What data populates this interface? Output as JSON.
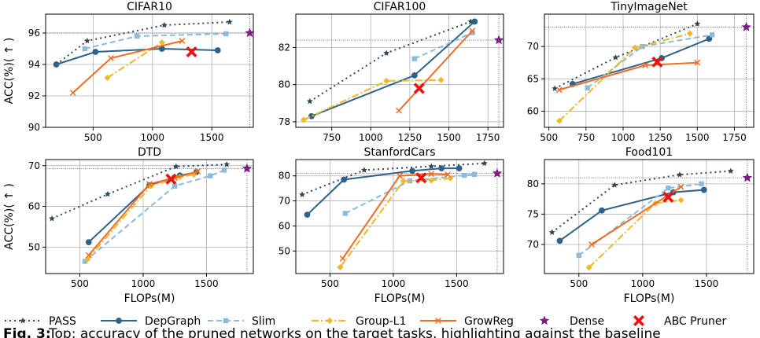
{
  "chart_data": [
    {
      "type": "line",
      "title": "CIFAR10",
      "ylabel": "ACC(%)( ↑ )",
      "xlabel": "",
      "xlim": [
        100,
        1850
      ],
      "ylim": [
        90,
        97.2
      ],
      "xticks": [
        500,
        1000,
        1500
      ],
      "yticks": [
        90,
        92,
        94,
        96
      ],
      "dense_acc": 96.0,
      "series": [
        {
          "name": "PASS",
          "points": [
            [
              190,
              94.0
            ],
            [
              450,
              95.5
            ],
            [
              1100,
              96.5
            ],
            [
              1650,
              96.7
            ]
          ]
        },
        {
          "name": "DepGraph",
          "points": [
            [
              190,
              94.0
            ],
            [
              520,
              94.8
            ],
            [
              1080,
              95.0
            ],
            [
              1550,
              94.9
            ]
          ]
        },
        {
          "name": "Slim",
          "points": [
            [
              430,
              95.0
            ],
            [
              870,
              95.8
            ],
            [
              1620,
              95.95
            ]
          ]
        },
        {
          "name": "Group-L1",
          "points": [
            [
              620,
              93.15
            ],
            [
              1080,
              95.4
            ]
          ]
        },
        {
          "name": "GrowReg",
          "points": [
            [
              330,
              92.2
            ],
            [
              650,
              94.4
            ],
            [
              1250,
              95.5
            ]
          ]
        }
      ],
      "dense": [
        1820,
        96.0
      ],
      "abc": [
        1330,
        94.8
      ]
    },
    {
      "type": "line",
      "title": "CIFAR100",
      "ylabel": "",
      "xlabel": "",
      "xlim": [
        520,
        1850
      ],
      "ylim": [
        77.7,
        83.8
      ],
      "xticks": [
        750,
        1000,
        1250,
        1500,
        1750
      ],
      "yticks": [
        78,
        80,
        82
      ],
      "dense_acc": 82.4,
      "series": [
        {
          "name": "PASS",
          "points": [
            [
              610,
              79.1
            ],
            [
              1100,
              81.7
            ],
            [
              1640,
              83.4
            ]
          ]
        },
        {
          "name": "DepGraph",
          "points": [
            [
              620,
              78.3
            ],
            [
              1280,
              80.5
            ],
            [
              1665,
              83.4
            ]
          ]
        },
        {
          "name": "Slim",
          "points": [
            [
              1280,
              81.4
            ],
            [
              1650,
              82.8
            ]
          ]
        },
        {
          "name": "Group-L1",
          "points": [
            [
              570,
              78.1
            ],
            [
              1100,
              80.2
            ],
            [
              1450,
              80.25
            ]
          ]
        },
        {
          "name": "GrowReg",
          "points": [
            [
              1180,
              78.6
            ],
            [
              1650,
              82.9
            ]
          ]
        }
      ],
      "dense": [
        1820,
        82.4
      ],
      "abc": [
        1310,
        79.8
      ]
    },
    {
      "type": "line",
      "title": "TinyImageNet",
      "ylabel": "",
      "xlabel": "",
      "xlim": [
        470,
        1880
      ],
      "ylim": [
        57.5,
        75
      ],
      "xticks": [
        500,
        750,
        1000,
        1250,
        1500,
        1750
      ],
      "yticks": [
        60,
        65,
        70
      ],
      "dense_acc": 73.0,
      "series": [
        {
          "name": "PASS",
          "points": [
            [
              540,
              63.5
            ],
            [
              950,
              68.3
            ],
            [
              1500,
              73.5
            ]
          ]
        },
        {
          "name": "DepGraph",
          "points": [
            [
              660,
              64.2
            ],
            [
              1260,
              68.2
            ],
            [
              1580,
              71.2
            ]
          ]
        },
        {
          "name": "Slim",
          "points": [
            [
              760,
              63.6
            ],
            [
              1130,
              70.0
            ],
            [
              1600,
              71.8
            ]
          ]
        },
        {
          "name": "Group-L1",
          "points": [
            [
              570,
              58.5
            ],
            [
              1080,
              69.8
            ],
            [
              1450,
              72.0
            ]
          ]
        },
        {
          "name": "GrowReg",
          "points": [
            [
              570,
              63.3
            ],
            [
              1150,
              67.1
            ],
            [
              1500,
              67.5
            ]
          ]
        }
      ],
      "dense": [
        1830,
        73.0
      ],
      "abc": [
        1230,
        67.6
      ]
    },
    {
      "type": "line",
      "title": "DTD",
      "ylabel": "ACC(%)( ↑ )",
      "xlabel": "FLOPs(M)",
      "xlim": [
        230,
        1870
      ],
      "ylim": [
        43.5,
        71.5
      ],
      "xticks": [
        500,
        1000,
        1500
      ],
      "yticks": [
        50,
        60,
        70
      ],
      "dense_acc": 69.3,
      "series": [
        {
          "name": "PASS",
          "points": [
            [
              280,
              57.0
            ],
            [
              720,
              63.0
            ],
            [
              1260,
              69.8
            ],
            [
              1660,
              70.3
            ]
          ]
        },
        {
          "name": "DepGraph",
          "points": [
            [
              570,
              51.2
            ],
            [
              1050,
              65.2
            ],
            [
              1290,
              67.6
            ],
            [
              1420,
              68.4
            ]
          ]
        },
        {
          "name": "Slim",
          "points": [
            [
              540,
              46.5
            ],
            [
              1250,
              65.0
            ],
            [
              1530,
              67.5
            ],
            [
              1640,
              68.9
            ]
          ]
        },
        {
          "name": "Group-L1",
          "points": [
            [
              560,
              47.0
            ],
            [
              1060,
              65.0
            ],
            [
              1290,
              67.2
            ],
            [
              1400,
              67.8
            ]
          ]
        },
        {
          "name": "GrowReg",
          "points": [
            [
              570,
              48.0
            ],
            [
              1050,
              65.5
            ],
            [
              1250,
              67.0
            ],
            [
              1430,
              68.6
            ]
          ]
        }
      ],
      "dense": [
        1820,
        69.3
      ],
      "abc": [
        1220,
        66.7
      ]
    },
    {
      "type": "line",
      "title": "StanfordCars",
      "ylabel": "",
      "xlabel": "FLOPs(M)",
      "xlim": [
        230,
        1870
      ],
      "ylim": [
        41,
        86.5
      ],
      "xticks": [
        500,
        1000,
        1500
      ],
      "yticks": [
        50,
        60,
        70,
        80
      ],
      "dense_acc": 81.0,
      "series": [
        {
          "name": "PASS",
          "points": [
            [
              280,
              72.5
            ],
            [
              770,
              82.3
            ],
            [
              1300,
              83.8
            ],
            [
              1720,
              85.0
            ]
          ]
        },
        {
          "name": "DepGraph",
          "points": [
            [
              320,
              64.5
            ],
            [
              610,
              78.5
            ],
            [
              1150,
              82.0
            ],
            [
              1380,
              83.0
            ],
            [
              1520,
              83.0
            ]
          ]
        },
        {
          "name": "Slim",
          "points": [
            [
              620,
              65.0
            ],
            [
              1130,
              78.0
            ],
            [
              1560,
              80.2
            ],
            [
              1640,
              80.6
            ]
          ]
        },
        {
          "name": "Group-L1",
          "points": [
            [
              580,
              43.5
            ],
            [
              1080,
              78.0
            ],
            [
              1300,
              78.2
            ],
            [
              1450,
              79.0
            ]
          ]
        },
        {
          "name": "GrowReg",
          "points": [
            [
              600,
              47.0
            ],
            [
              1050,
              80.0
            ],
            [
              1300,
              80.8
            ],
            [
              1430,
              80.5
            ]
          ]
        }
      ],
      "dense": [
        1820,
        81.0
      ],
      "abc": [
        1220,
        79.2
      ]
    },
    {
      "type": "line",
      "title": "Food101",
      "ylabel": "",
      "xlabel": "FLOPs(M)",
      "xlim": [
        230,
        1870
      ],
      "ylim": [
        65.2,
        84
      ],
      "xticks": [
        500,
        1000,
        1500
      ],
      "yticks": [
        70,
        75,
        80
      ],
      "dense_acc": 81.0,
      "series": [
        {
          "name": "PASS",
          "points": [
            [
              290,
              72.0
            ],
            [
              780,
              79.8
            ],
            [
              1290,
              81.5
            ],
            [
              1690,
              82.1
            ]
          ]
        },
        {
          "name": "DepGraph",
          "points": [
            [
              350,
              70.6
            ],
            [
              680,
              75.6
            ],
            [
              1240,
              78.6
            ],
            [
              1480,
              79.0
            ]
          ]
        },
        {
          "name": "Slim",
          "points": [
            [
              500,
              68.2
            ],
            [
              1200,
              79.3
            ],
            [
              1460,
              80.0
            ]
          ]
        },
        {
          "name": "Group-L1",
          "points": [
            [
              580,
              66.2
            ],
            [
              1100,
              76.8
            ],
            [
              1300,
              77.3
            ]
          ]
        },
        {
          "name": "GrowReg",
          "points": [
            [
              600,
              70.0
            ],
            [
              1300,
              79.5
            ]
          ]
        }
      ],
      "dense": [
        1820,
        81.0
      ],
      "abc": [
        1200,
        77.8
      ]
    }
  ],
  "styles": {
    "PASS": {
      "color": "#2f4858",
      "dash": "2 4",
      "marker": "star"
    },
    "DepGraph": {
      "color": "#2e6289",
      "dash": "",
      "marker": "circle"
    },
    "Slim": {
      "color": "#8ebad9",
      "dash": "7 4",
      "marker": "square"
    },
    "Group-L1": {
      "color": "#f4b528",
      "dash": "9 3 2 3",
      "marker": "diamond"
    },
    "GrowReg": {
      "color": "#ef6c23",
      "dash": "",
      "marker": "x"
    },
    "Dense": {
      "color": "#7b1f83",
      "marker": "star"
    },
    "ABC Pruner": {
      "color": "#ee1111",
      "marker": "boldx"
    }
  },
  "legend": {
    "items": [
      "PASS",
      "DepGraph",
      "Slim",
      "Group-L1",
      "GrowReg",
      "Dense",
      "ABC Pruner"
    ]
  },
  "caption": {
    "label": "Fig. 3:",
    "text": "Top: accuracy of the pruned networks on the target tasks, highlighting against the baseline"
  }
}
